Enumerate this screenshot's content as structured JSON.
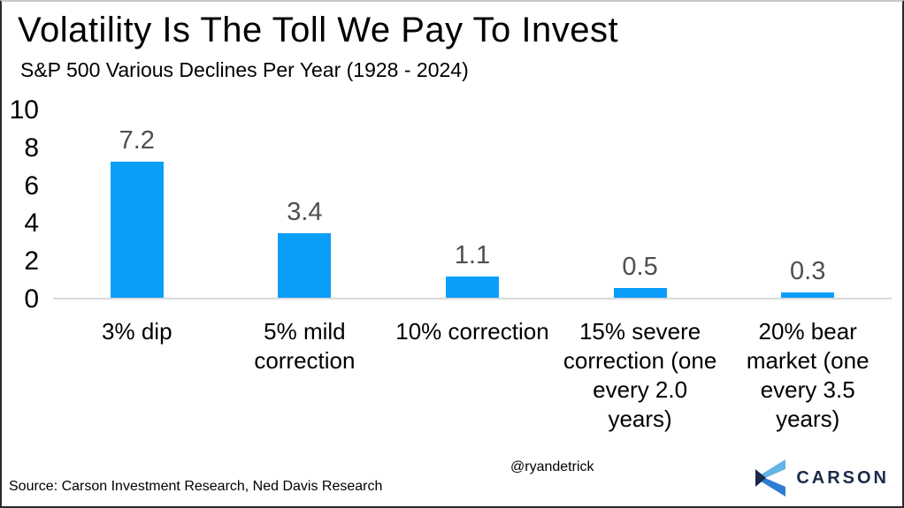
{
  "chart_data": {
    "type": "bar",
    "title": "Volatility Is The Toll We Pay To Invest",
    "subtitle": "S&P 500 Various Declines Per Year (1928 - 2024)",
    "categories": [
      "3% dip",
      "5% mild\ncorrection",
      "10% correction",
      "15% severe\ncorrection (one\nevery 2.0\nyears)",
      "20% bear\nmarket (one\nevery 3.5\nyears)"
    ],
    "values": [
      7.2,
      3.4,
      1.1,
      0.5,
      0.3
    ],
    "display_values": [
      "7.2",
      "3.4",
      "1.1",
      "0.5",
      "0.3"
    ],
    "xlabel": "",
    "ylabel": "",
    "ylim": [
      0,
      10
    ],
    "yticks": [
      0,
      2,
      4,
      6,
      8,
      10
    ],
    "grid": false,
    "legend": false,
    "bar_color": "#0a9ef9",
    "value_label_color": "#4f4f4f",
    "axis_line_color": "#d9d9d9"
  },
  "footer": {
    "source": "Source: Carson Investment Research, Ned Davis Research",
    "handle": "@ryandetrick",
    "logo_text": "CARSON"
  },
  "logo_colors": {
    "light_blue": "#62b5e5",
    "mid_blue": "#2d7dd2",
    "navy": "#1b2a4a"
  }
}
